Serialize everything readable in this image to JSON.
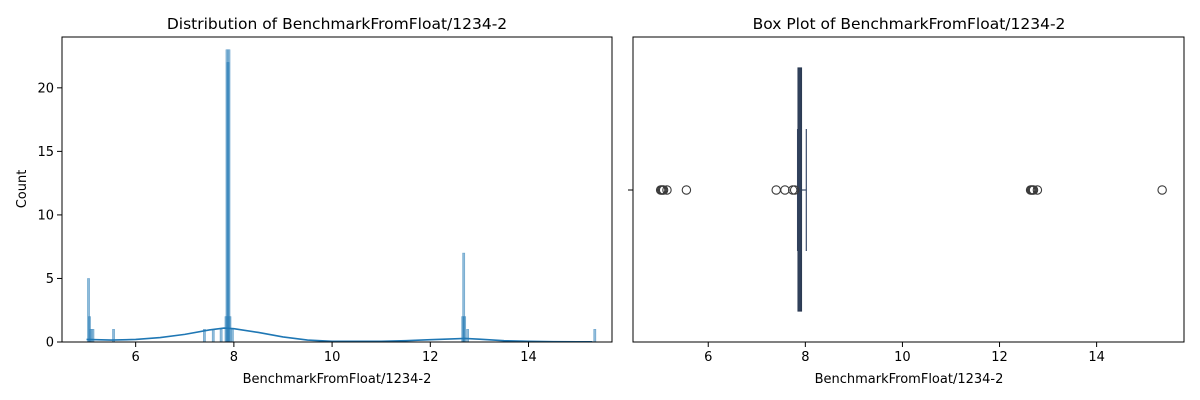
{
  "chart_data": [
    {
      "type": "histogram",
      "title": "Distribution of BenchmarkFromFloat/1234-2",
      "xlabel": "BenchmarkFromFloat/1234-2",
      "ylabel": "Count",
      "xlim": [
        4.5,
        15.7
      ],
      "ylim": [
        0,
        24
      ],
      "xticks": [
        "6",
        "8",
        "10",
        "12",
        "14"
      ],
      "yticks": [
        "0",
        "5",
        "10",
        "15",
        "20"
      ],
      "bars": [
        {
          "x": 5.04,
          "count": 5
        },
        {
          "x": 5.06,
          "count": 2
        },
        {
          "x": 5.09,
          "count": 1
        },
        {
          "x": 5.13,
          "count": 1
        },
        {
          "x": 5.55,
          "count": 1
        },
        {
          "x": 7.4,
          "count": 1
        },
        {
          "x": 7.58,
          "count": 1
        },
        {
          "x": 7.74,
          "count": 1
        },
        {
          "x": 7.84,
          "count": 2
        },
        {
          "x": 7.86,
          "count": 23
        },
        {
          "x": 7.88,
          "count": 22
        },
        {
          "x": 7.9,
          "count": 23
        },
        {
          "x": 7.92,
          "count": 2
        },
        {
          "x": 7.97,
          "count": 1
        },
        {
          "x": 12.66,
          "count": 2
        },
        {
          "x": 12.68,
          "count": 7
        },
        {
          "x": 12.7,
          "count": 2
        },
        {
          "x": 12.76,
          "count": 1
        },
        {
          "x": 15.35,
          "count": 1
        }
      ],
      "kde": {
        "x": [
          5.0,
          5.5,
          6.0,
          6.5,
          7.0,
          7.5,
          7.8,
          8.0,
          8.5,
          9.0,
          9.5,
          10.0,
          10.5,
          11.0,
          11.5,
          12.0,
          12.5,
          12.7,
          13.0,
          13.5,
          14.0,
          14.5,
          15.0,
          15.3
        ],
        "y": [
          0.2,
          0.15,
          0.2,
          0.35,
          0.6,
          0.95,
          1.1,
          1.05,
          0.75,
          0.4,
          0.15,
          0.05,
          0.05,
          0.05,
          0.1,
          0.18,
          0.25,
          0.28,
          0.22,
          0.1,
          0.05,
          0.03,
          0.02,
          0.02
        ]
      },
      "color": "#1f77b4"
    },
    {
      "type": "box",
      "title": "Box Plot of BenchmarkFromFloat/1234-2",
      "xlabel": "BenchmarkFromFloat/1234-2",
      "xlim": [
        4.45,
        15.8
      ],
      "xticks": [
        "6",
        "8",
        "10",
        "12",
        "14"
      ],
      "q1": 7.85,
      "median": 7.89,
      "q3": 7.92,
      "whisker_low": 7.84,
      "whisker_high": 8.02,
      "outliers": [
        5.02,
        5.04,
        5.06,
        5.08,
        5.15,
        5.55,
        7.4,
        7.58,
        7.74,
        7.78,
        12.64,
        12.66,
        12.68,
        12.7,
        12.78,
        15.35
      ],
      "color": "#3a4c6b"
    }
  ]
}
